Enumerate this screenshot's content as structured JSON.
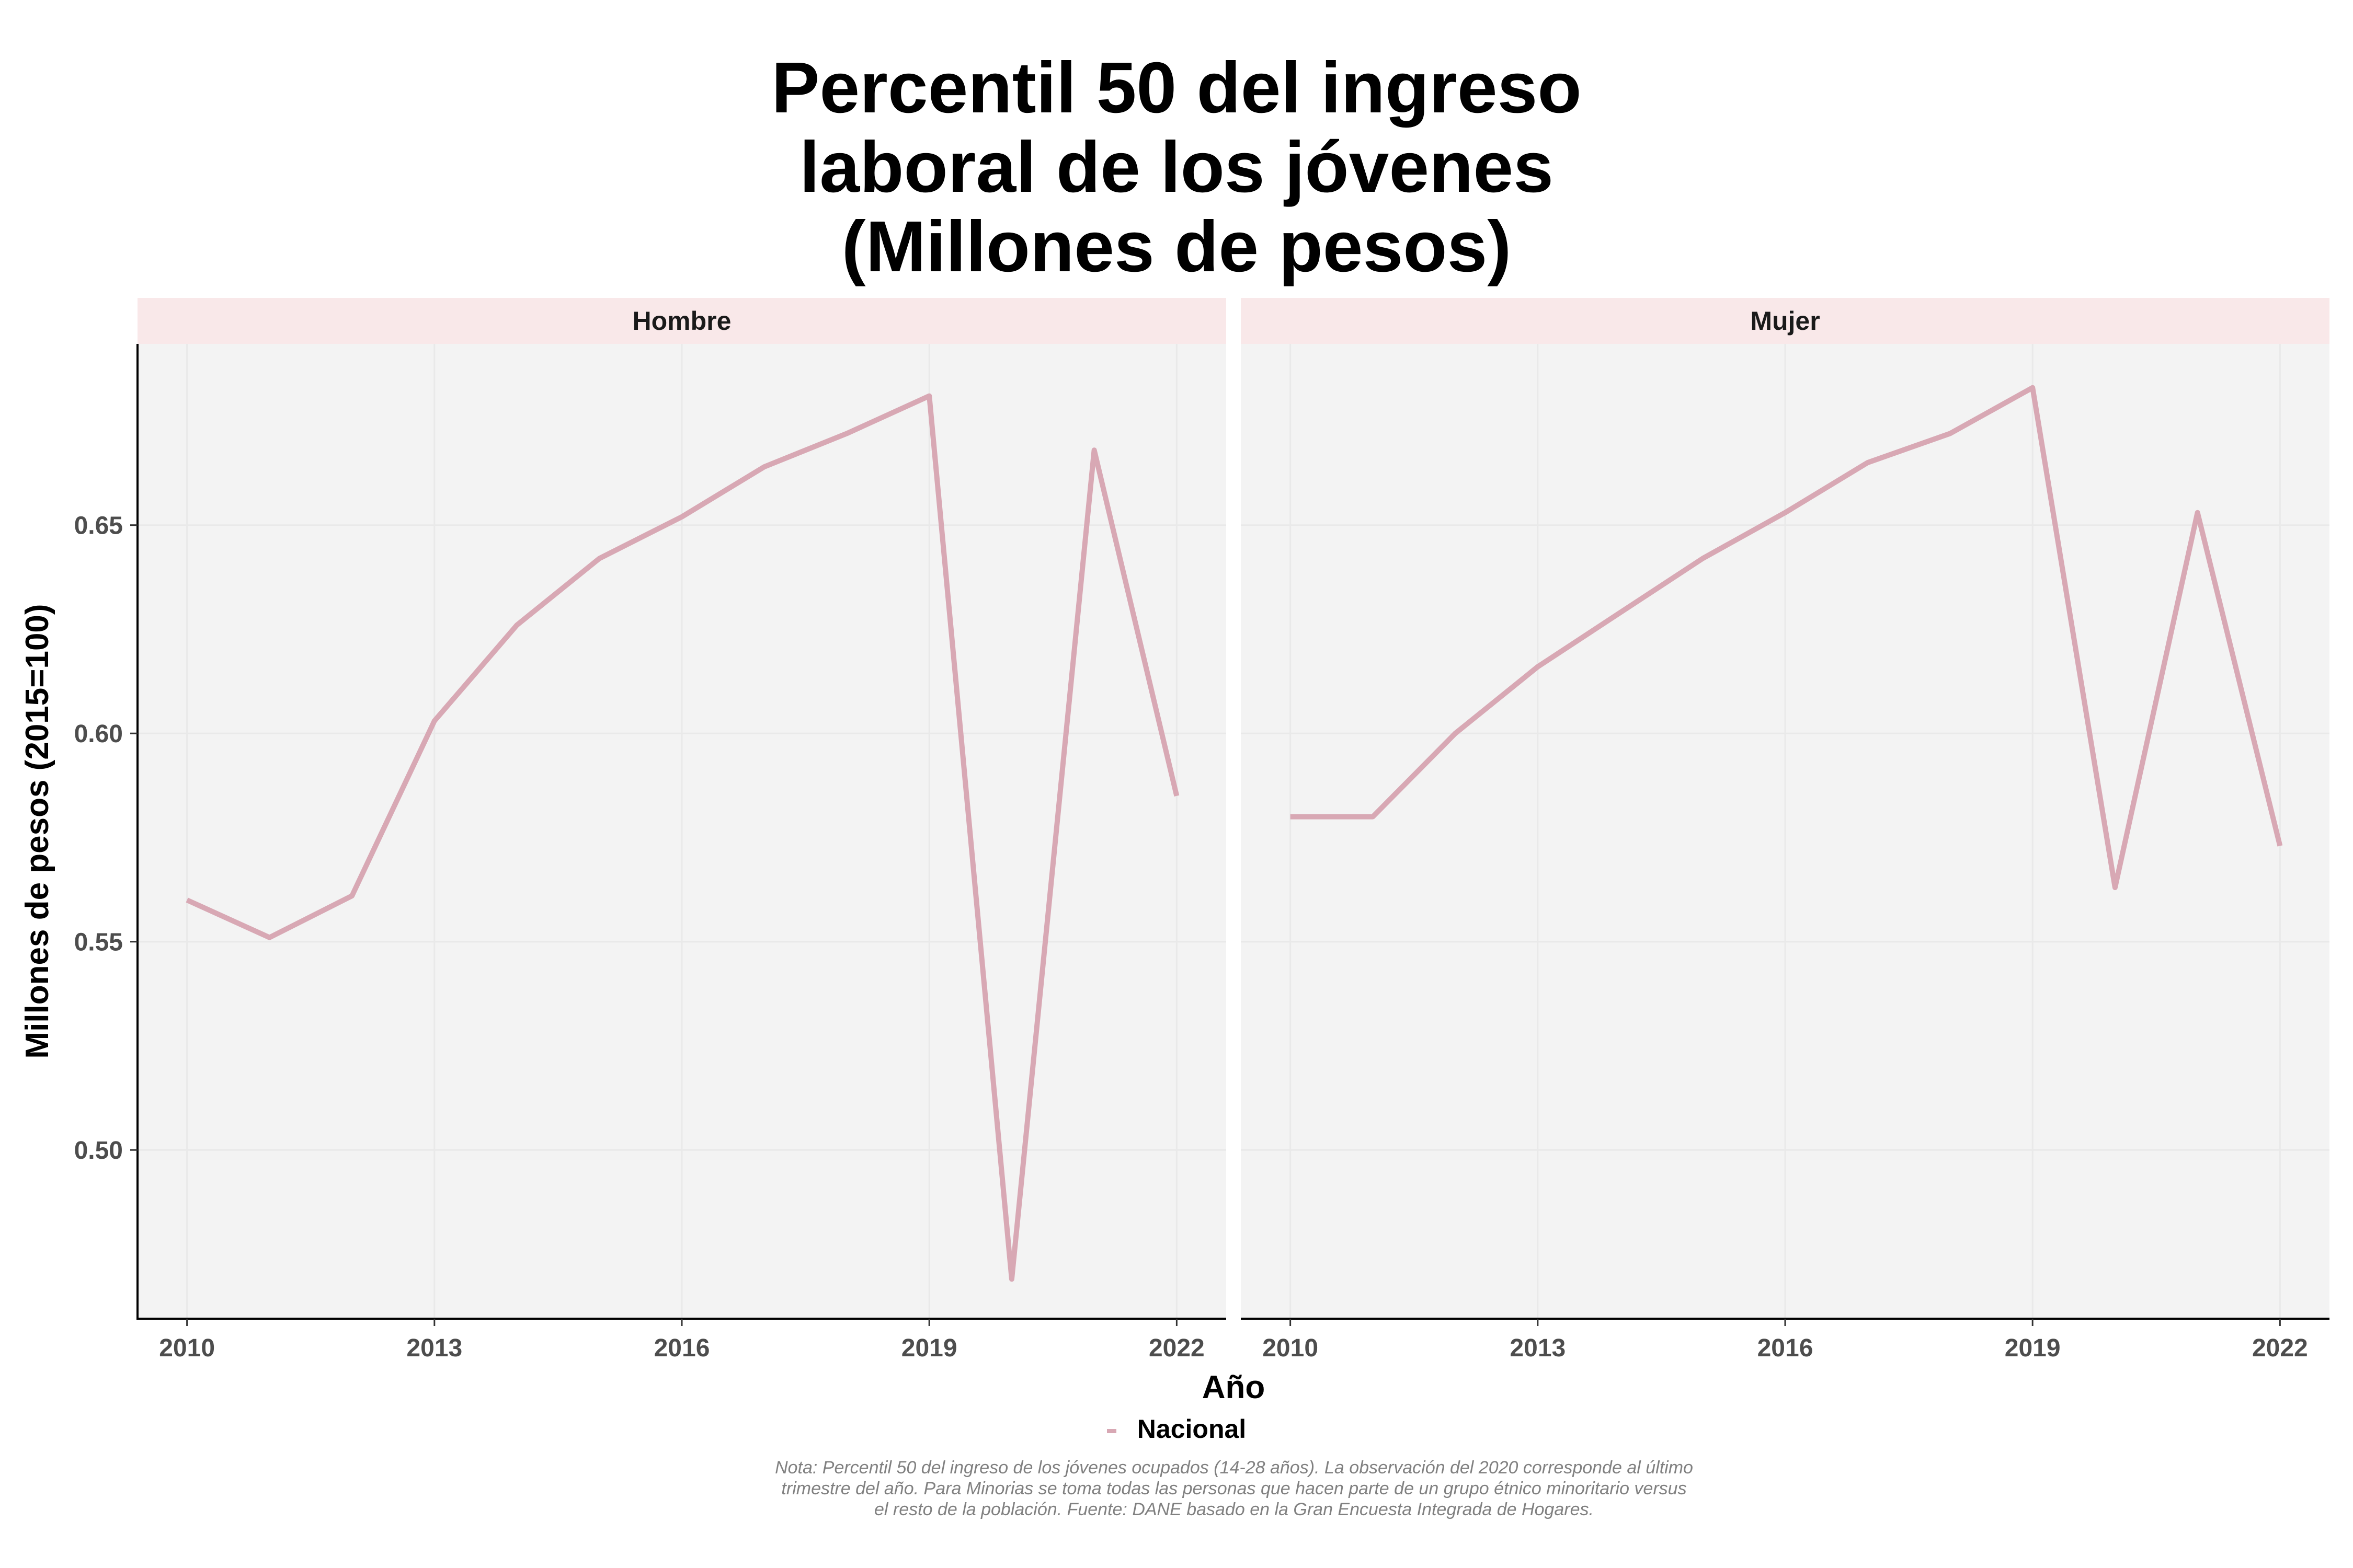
{
  "title_lines": [
    "Percentil 50 del ingreso",
    "laboral de los jóvenes",
    "(Millones de pesos)"
  ],
  "legend_label": "Nacional",
  "note": "Nota: Percentil 50 del ingreso de los jóvenes ocupados (14-28 años). La observación del 2020 corresponde al último trimestre del año. Para Minorias se toma todas las personas que hacen parte de un grupo étnico minoritario versus el resto de la población. Fuente: DANE basado en la Gran Encuesta Integrada de Hogares.",
  "colors": {
    "line": "#d8a8b4",
    "panel_bg": "#f3f3f3",
    "strip_bg": "#f9e8e9",
    "grid": "#e9e9e9"
  },
  "chart_data": {
    "type": "line",
    "xlabel": "Año",
    "ylabel": "Millones de pesos (2015=100)",
    "x": [
      2010,
      2011,
      2012,
      2013,
      2014,
      2015,
      2016,
      2017,
      2018,
      2019,
      2020,
      2021,
      2022
    ],
    "xticks": [
      2010,
      2013,
      2016,
      2019,
      2022
    ],
    "yticks": [
      0.5,
      0.55,
      0.6,
      0.65
    ],
    "ytick_labels": [
      "0.50",
      "0.55",
      "0.60",
      "0.65"
    ],
    "xlim": [
      2009.4,
      2022.6
    ],
    "ylim": [
      0.4595,
      0.6935
    ],
    "facets": [
      {
        "name": "Hombre",
        "series": [
          {
            "name": "Nacional",
            "values": [
              0.56,
              0.551,
              0.561,
              0.603,
              0.626,
              0.642,
              0.652,
              0.664,
              0.672,
              0.681,
              0.469,
              0.668,
              0.585
            ]
          }
        ]
      },
      {
        "name": "Mujer",
        "series": [
          {
            "name": "Nacional",
            "values": [
              0.58,
              0.58,
              0.6,
              0.616,
              0.629,
              0.642,
              0.653,
              0.665,
              0.672,
              0.683,
              0.563,
              0.653,
              0.573
            ]
          }
        ]
      }
    ]
  }
}
